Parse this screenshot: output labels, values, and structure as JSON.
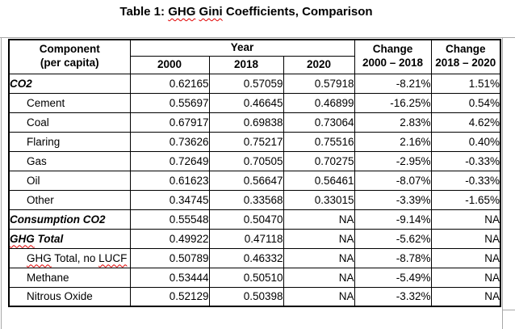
{
  "title": {
    "text": "Table 1: GHG Gini Coefficients, Comparison",
    "misspelled_words": [
      "GHG",
      "Gini"
    ]
  },
  "header": {
    "component_line1": "Component",
    "component_line2": "(per capita)",
    "year_group_label": "Year",
    "year_columns": [
      "2000",
      "2018",
      "2020"
    ],
    "change_1": {
      "line1": "Change",
      "line2": "2000 – 2018"
    },
    "change_2": {
      "line1": "Change",
      "line2": "2018 – 2020"
    }
  },
  "table": {
    "rows": [
      {
        "component": "CO2",
        "emphasis": true,
        "indent": false,
        "misspelled_words": [],
        "values": [
          "0.62165",
          "0.57059",
          "0.57918",
          "-8.21%",
          "1.51%"
        ]
      },
      {
        "component": "Cement",
        "emphasis": false,
        "indent": true,
        "misspelled_words": [],
        "values": [
          "0.55697",
          "0.46645",
          "0.46899",
          "-16.25%",
          "0.54%"
        ]
      },
      {
        "component": "Coal",
        "emphasis": false,
        "indent": true,
        "misspelled_words": [],
        "values": [
          "0.67917",
          "0.69838",
          "0.73064",
          "2.83%",
          "4.62%"
        ]
      },
      {
        "component": "Flaring",
        "emphasis": false,
        "indent": true,
        "misspelled_words": [],
        "values": [
          "0.73626",
          "0.75217",
          "0.75516",
          "2.16%",
          "0.40%"
        ]
      },
      {
        "component": "Gas",
        "emphasis": false,
        "indent": true,
        "misspelled_words": [],
        "values": [
          "0.72649",
          "0.70505",
          "0.70275",
          "-2.95%",
          "-0.33%"
        ]
      },
      {
        "component": "Oil",
        "emphasis": false,
        "indent": true,
        "misspelled_words": [],
        "values": [
          "0.61623",
          "0.56647",
          "0.56461",
          "-8.07%",
          "-0.33%"
        ]
      },
      {
        "component": "Other",
        "emphasis": false,
        "indent": true,
        "misspelled_words": [],
        "values": [
          "0.34745",
          "0.33568",
          "0.33015",
          "-3.39%",
          "-1.65%"
        ]
      },
      {
        "component": "Consumption CO2",
        "emphasis": true,
        "indent": false,
        "misspelled_words": [],
        "values": [
          "0.55548",
          "0.50470",
          "NA",
          "-9.14%",
          "NA"
        ]
      },
      {
        "component": "GHG Total",
        "emphasis": true,
        "indent": false,
        "misspelled_words": [
          "GHG"
        ],
        "values": [
          "0.49922",
          "0.47118",
          "NA",
          "-5.62%",
          "NA"
        ]
      },
      {
        "component": "GHG Total, no LUCF",
        "emphasis": false,
        "indent": true,
        "misspelled_words": [
          "GHG",
          "LUCF"
        ],
        "values": [
          "0.50789",
          "0.46332",
          "NA",
          "-8.78%",
          "NA"
        ]
      },
      {
        "component": "Methane",
        "emphasis": false,
        "indent": true,
        "misspelled_words": [],
        "values": [
          "0.53444",
          "0.50510",
          "NA",
          "-5.49%",
          "NA"
        ]
      },
      {
        "component": "Nitrous Oxide",
        "emphasis": false,
        "indent": true,
        "misspelled_words": [],
        "values": [
          "0.52129",
          "0.50398",
          "NA",
          "-3.32%",
          "NA"
        ]
      }
    ]
  },
  "colors": {
    "text": "#000000",
    "table_border": "#000000",
    "guide_line": "#a8a8a8",
    "squiggle": "#e00000"
  }
}
